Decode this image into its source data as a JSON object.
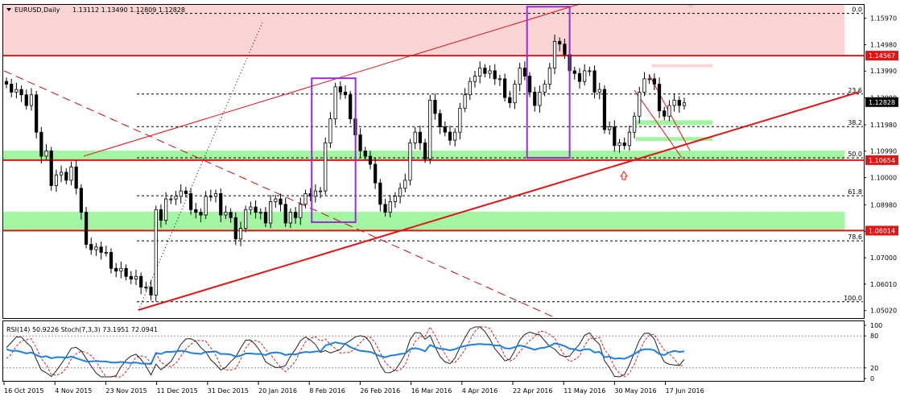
{
  "chart_data": {
    "type": "candlestick",
    "header": {
      "symbol_tf": "EURUSD,Daily",
      "ohlc": "1.13112 1.13490 1.12809 1.12828"
    },
    "price_axis": {
      "ticks": [
        "1.15970",
        "1.14980",
        "1.13990",
        "1.12990",
        "1.11980",
        "1.10990",
        "1.10000",
        "1.08980",
        "1.07990",
        "1.07000",
        "1.06010",
        "1.05020"
      ],
      "range": [
        1.0474,
        1.1647
      ]
    },
    "levels": [
      {
        "name": "upper-resistance",
        "value": 1.14567,
        "label": "1.14567"
      },
      {
        "name": "mid-support",
        "value": 1.10654,
        "label": "1.10654"
      },
      {
        "name": "lower-support",
        "value": 1.08014,
        "label": "1.08014"
      },
      {
        "name": "current-price",
        "value": 1.12828,
        "label": "1.12828"
      }
    ],
    "fib_levels": [
      {
        "label": "0.0",
        "value": 1.1615
      },
      {
        "label": "23.6",
        "value": 1.1313
      },
      {
        "label": "38.2",
        "value": 1.1191
      },
      {
        "label": "50.0",
        "value": 1.1074
      },
      {
        "label": "61.8",
        "value": 1.0932
      },
      {
        "label": "78.6",
        "value": 1.0763
      },
      {
        "label": "100.0",
        "value": 1.0535
      }
    ],
    "x_labels": [
      "16 Oct 2015",
      "4 Nov 2015",
      "23 Nov 2015",
      "11 Dec 2015",
      "31 Dec 2015",
      "20 Jan 2016",
      "8 Feb 2016",
      "26 Feb 2016",
      "16 Mar 2016",
      "4 Apr 2016",
      "22 Apr 2016",
      "11 May 2016",
      "30 May 2016",
      "17 Jun 2016"
    ],
    "closes": [
      1.135,
      1.132,
      1.133,
      1.131,
      1.127,
      1.131,
      1.117,
      1.108,
      1.11,
      1.097,
      1.101,
      1.102,
      1.099,
      1.104,
      1.096,
      1.087,
      1.075,
      1.073,
      1.074,
      1.072,
      1.072,
      1.066,
      1.065,
      1.066,
      1.063,
      1.062,
      1.063,
      1.059,
      1.059,
      1.056,
      1.088,
      1.084,
      1.092,
      1.092,
      1.093,
      1.095,
      1.094,
      1.088,
      1.087,
      1.086,
      1.093,
      1.093,
      1.094,
      1.086,
      1.087,
      1.085,
      1.077,
      1.081,
      1.088,
      1.089,
      1.087,
      1.087,
      1.083,
      1.091,
      1.092,
      1.09,
      1.083,
      1.087,
      1.085,
      1.09,
      1.094,
      1.093,
      1.095,
      1.095,
      1.113,
      1.122,
      1.134,
      1.132,
      1.131,
      1.122,
      1.116,
      1.11,
      1.108,
      1.105,
      1.098,
      1.09,
      1.087,
      1.091,
      1.093,
      1.096,
      1.099,
      1.113,
      1.117,
      1.113,
      1.107,
      1.129,
      1.124,
      1.119,
      1.117,
      1.114,
      1.117,
      1.126,
      1.131,
      1.136,
      1.138,
      1.141,
      1.139,
      1.14,
      1.137,
      1.137,
      1.13,
      1.128,
      1.135,
      1.141,
      1.138,
      1.132,
      1.127,
      1.132,
      1.135,
      1.141,
      1.151,
      1.15,
      1.146,
      1.14,
      1.139,
      1.136,
      1.14,
      1.14,
      1.132,
      1.133,
      1.118,
      1.119,
      1.112,
      1.113,
      1.112,
      1.117,
      1.123,
      1.132,
      1.137,
      1.137,
      1.135,
      1.125,
      1.123,
      1.127,
      1.129,
      1.127,
      1.128
    ],
    "boxes": [
      {
        "name": "feb-range-box",
        "x0": 0.3585,
        "x1": 0.4094,
        "y0": 1.1372,
        "y1": 1.0833
      },
      {
        "name": "may-range-box",
        "x0": 0.6087,
        "x1": 0.6582,
        "y0": 1.164,
        "y1": 1.1074
      }
    ],
    "zones": [
      {
        "name": "resistance-zone",
        "y0": 1.1647,
        "y1": 1.1457,
        "color": "#fbd5d5"
      },
      {
        "name": "support-zone-high",
        "y0": 1.1101,
        "y1": 1.1065,
        "color": "#a3f5a3"
      },
      {
        "name": "support-zone-low",
        "y0": 1.0872,
        "y1": 1.0802,
        "color": "#a3f5a3"
      }
    ],
    "rsi": {
      "label": "RSI(14) 50.9226  Stoch(7,3,3) 73.1951 72.0941",
      "axis_labels": [
        "100",
        "80",
        "20",
        "0"
      ],
      "range": [
        0,
        100
      ],
      "values": [
        55,
        52,
        52,
        50,
        47,
        49,
        44,
        40,
        42,
        38,
        40,
        40,
        39,
        41,
        38,
        35,
        32,
        32,
        33,
        32,
        32,
        30,
        30,
        31,
        30,
        29,
        30,
        28,
        28,
        27,
        48,
        46,
        50,
        50,
        51,
        52,
        51,
        48,
        47,
        46,
        50,
        50,
        51,
        46,
        46,
        45,
        41,
        43,
        47,
        47,
        46,
        46,
        44,
        48,
        49,
        48,
        44,
        46,
        45,
        48,
        50,
        49,
        51,
        51,
        62,
        65,
        68,
        66,
        65,
        59,
        55,
        52,
        51,
        50,
        46,
        42,
        40,
        43,
        44,
        46,
        47,
        55,
        57,
        55,
        51,
        63,
        59,
        56,
        55,
        53,
        55,
        59,
        61,
        63,
        64,
        65,
        64,
        64,
        62,
        62,
        57,
        56,
        59,
        62,
        60,
        57,
        54,
        57,
        58,
        61,
        66,
        64,
        61,
        56,
        55,
        52,
        55,
        55,
        49,
        50,
        40,
        41,
        37,
        38,
        37,
        41,
        46,
        52,
        55,
        55,
        53,
        46,
        44,
        49,
        52,
        50,
        51
      ]
    }
  }
}
